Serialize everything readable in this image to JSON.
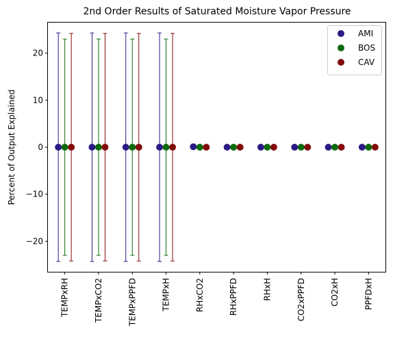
{
  "chart_data": {
    "type": "scatter",
    "title": "2nd Order Results of Saturated Moisture Vapor Pressure",
    "xlabel": "",
    "ylabel": "Percent of Output Explained",
    "categories": [
      "TEMPxRH",
      "TEMPxCO2",
      "TEMPxPPFD",
      "TEMPxH",
      "RHxCO2",
      "RHxPPFD",
      "RHxH",
      "CO2xPPFD",
      "CO2xH",
      "PPFDxH"
    ],
    "ylim": [
      -26.5,
      26.5
    ],
    "yticks": [
      -20,
      -10,
      0,
      10,
      20
    ],
    "grid": false,
    "legend_position": "top-right",
    "series": [
      {
        "name": "AMI",
        "color": "#2a1a84",
        "values": [
          0,
          0,
          0,
          0,
          0.1,
          0,
          0,
          0,
          0,
          0
        ],
        "errors": [
          24.3,
          24.3,
          24.3,
          24.3,
          0,
          0,
          0,
          0,
          0,
          0
        ]
      },
      {
        "name": "BOS",
        "color": "#0b6b0b",
        "values": [
          0,
          0,
          0,
          0,
          0,
          0,
          0,
          0,
          0,
          0
        ],
        "errors": [
          23.0,
          23.0,
          23.0,
          23.0,
          0,
          0,
          0,
          0,
          0,
          0
        ]
      },
      {
        "name": "CAV",
        "color": "#820b0b",
        "values": [
          0,
          0,
          0,
          0,
          0,
          0,
          0,
          0,
          0,
          0
        ],
        "errors": [
          24.2,
          24.2,
          24.2,
          24.2,
          0,
          0,
          0,
          0,
          0,
          0
        ]
      }
    ]
  }
}
